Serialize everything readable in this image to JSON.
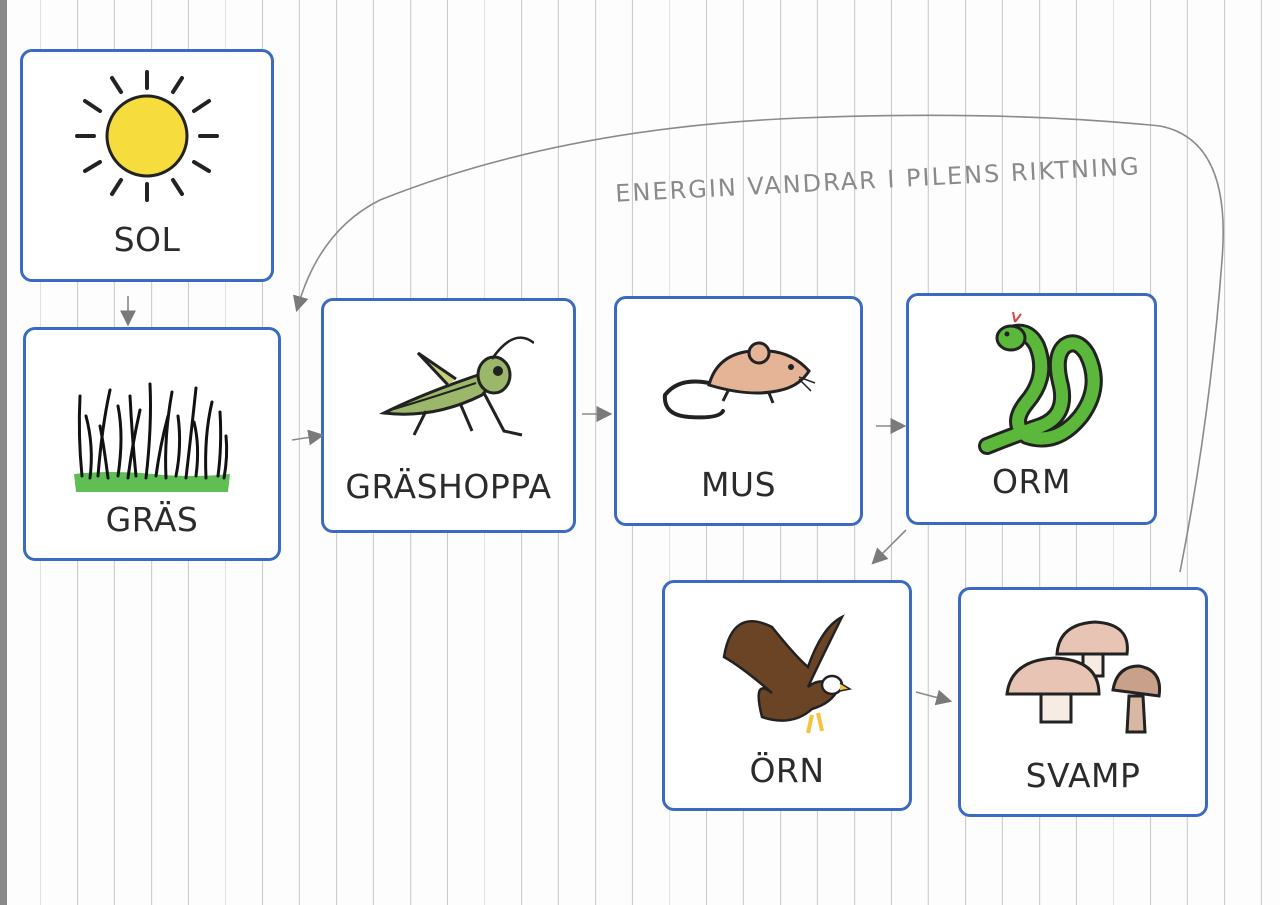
{
  "cards": {
    "sol": {
      "label": "SOL"
    },
    "gras": {
      "label": "GRÄS"
    },
    "grashoppa": {
      "label": "GRÄSHOPPA"
    },
    "mus": {
      "label": "MUS"
    },
    "orm": {
      "label": "ORM"
    },
    "orn": {
      "label": "ÖRN"
    },
    "svamp": {
      "label": "SVAMP"
    }
  },
  "annotation": {
    "text": "ENERGIN VANDRAR I PILENS RIKTNING"
  },
  "icons": [
    "sun-icon",
    "grass-icon",
    "grasshopper-icon",
    "mouse-icon",
    "snake-icon",
    "eagle-icon",
    "mushroom-icon"
  ],
  "colors": {
    "card_border": "#3a6bc0",
    "pencil": "#8a8a8a",
    "sun": "#f7dc3e",
    "grass": "#5fbf54",
    "snake": "#5cb83a",
    "mouse": "#e5b497",
    "eagle": "#6b4426",
    "mushroom": "#e8c4b4"
  }
}
